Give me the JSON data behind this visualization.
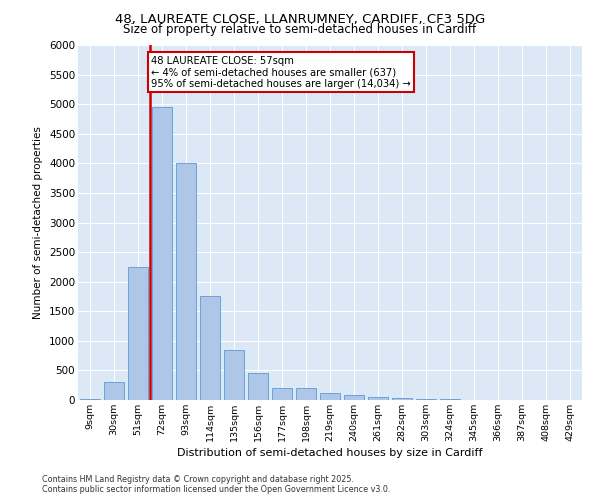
{
  "title_line1": "48, LAUREATE CLOSE, LLANRUMNEY, CARDIFF, CF3 5DG",
  "title_line2": "Size of property relative to semi-detached houses in Cardiff",
  "xlabel": "Distribution of semi-detached houses by size in Cardiff",
  "ylabel": "Number of semi-detached properties",
  "categories": [
    "9sqm",
    "30sqm",
    "51sqm",
    "72sqm",
    "93sqm",
    "114sqm",
    "135sqm",
    "156sqm",
    "177sqm",
    "198sqm",
    "219sqm",
    "240sqm",
    "261sqm",
    "282sqm",
    "303sqm",
    "324sqm",
    "345sqm",
    "366sqm",
    "387sqm",
    "408sqm",
    "429sqm"
  ],
  "values": [
    25,
    300,
    2250,
    4950,
    4000,
    1750,
    850,
    450,
    200,
    200,
    120,
    90,
    50,
    35,
    25,
    15,
    8,
    5,
    4,
    3,
    2
  ],
  "bar_color": "#aec6e8",
  "bar_edgecolor": "#5b9bd5",
  "vline_color": "#cc0000",
  "annotation_title": "48 LAUREATE CLOSE: 57sqm",
  "annotation_line2": "← 4% of semi-detached houses are smaller (637)",
  "annotation_line3": "95% of semi-detached houses are larger (14,034) →",
  "annotation_box_color": "#cc0000",
  "ylim": [
    0,
    6000
  ],
  "yticks": [
    0,
    500,
    1000,
    1500,
    2000,
    2500,
    3000,
    3500,
    4000,
    4500,
    5000,
    5500,
    6000
  ],
  "background_color": "#dce8f5",
  "footer_line1": "Contains HM Land Registry data © Crown copyright and database right 2025.",
  "footer_line2": "Contains public sector information licensed under the Open Government Licence v3.0."
}
